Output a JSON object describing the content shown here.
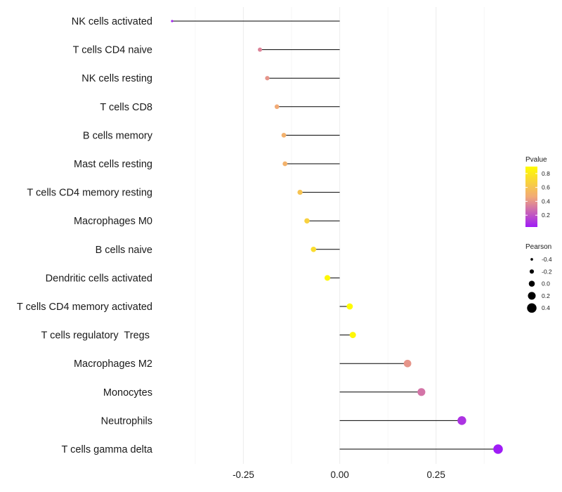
{
  "chart_data": {
    "type": "lollipop",
    "categories": [
      "NK cells activated",
      "T cells CD4 naive",
      "NK cells resting",
      "T cells CD8",
      "B cells memory",
      "Mast cells resting",
      "T cells CD4 memory resting",
      "Macrophages M0",
      "B cells naive",
      "Dendritic cells activated",
      "T cells CD4 memory activated",
      "T cells regulatory  Tregs ",
      "Macrophages M2",
      "Monocytes",
      "Neutrophils",
      "T cells gamma delta"
    ],
    "pearson": [
      -0.435,
      -0.207,
      -0.188,
      -0.163,
      -0.145,
      -0.142,
      -0.103,
      -0.085,
      -0.068,
      -0.032,
      0.026,
      0.034,
      0.176,
      0.212,
      0.317,
      0.411
    ],
    "pvalue": [
      0.05,
      0.35,
      0.4,
      0.47,
      0.5,
      0.51,
      0.6,
      0.67,
      0.73,
      0.88,
      0.9,
      0.87,
      0.4,
      0.3,
      0.1,
      0.03
    ],
    "xlim": [
      -0.435,
      0.411
    ],
    "x_ticks": [
      {
        "value": -0.25,
        "label": "-0.25"
      },
      {
        "value": 0.0,
        "label": "0.00"
      },
      {
        "value": 0.25,
        "label": "0.25"
      }
    ],
    "grid": true,
    "legend_placement": "right",
    "colors": {
      "low": "#9f1cf6",
      "mid": "#f2aa77",
      "high": "#fffc00",
      "segment": "#000000",
      "grid": "#efefef"
    },
    "legend_pvalue": {
      "title": "Pvalue",
      "ticks": [
        {
          "value": 0.8,
          "label": "0.8"
        },
        {
          "value": 0.6,
          "label": "0.6"
        },
        {
          "value": 0.4,
          "label": "0.4"
        },
        {
          "value": 0.2,
          "label": "0.2"
        }
      ],
      "range": [
        0.03,
        0.9
      ]
    },
    "legend_pearson": {
      "title": "Pearson",
      "entries": [
        {
          "value": -0.4,
          "label": "-0.4"
        },
        {
          "value": -0.2,
          "label": "-0.2"
        },
        {
          "value": 0.0,
          "label": "0.0"
        },
        {
          "value": 0.2,
          "label": "0.2"
        },
        {
          "value": 0.4,
          "label": "0.4"
        }
      ]
    }
  }
}
